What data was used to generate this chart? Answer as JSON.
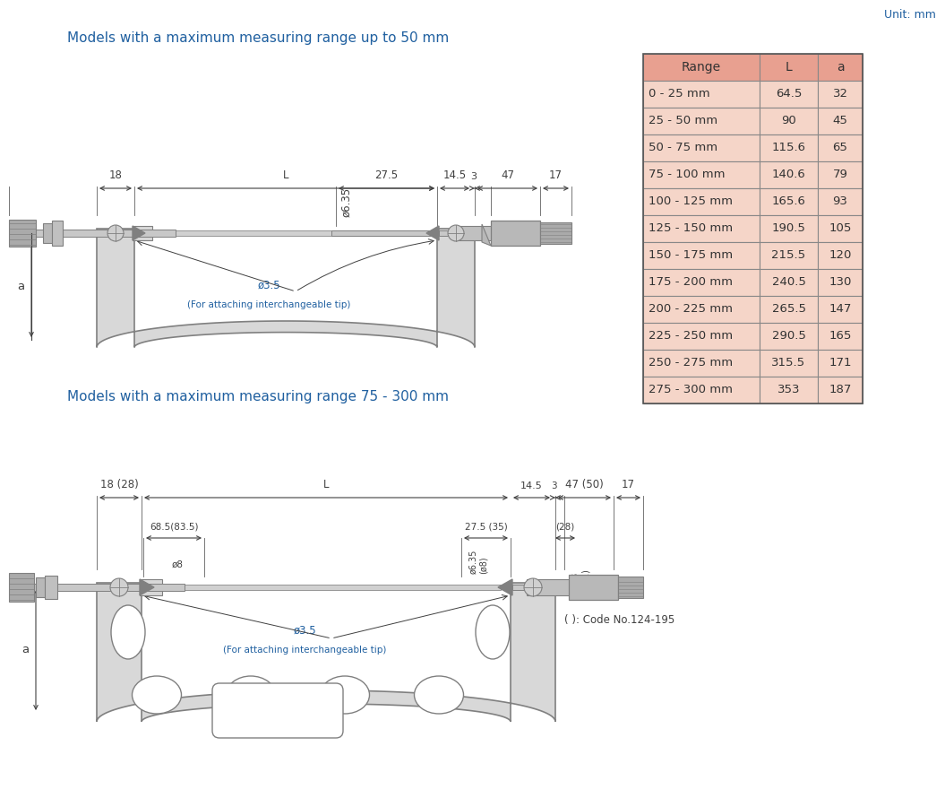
{
  "title_top": "Models with a maximum measuring range up to 50 mm",
  "title_bottom": "Models with a maximum measuring range 75 - 300 mm",
  "unit_text": "Unit: mm",
  "table_headers": [
    "Range",
    "L",
    "a"
  ],
  "table_data": [
    [
      "0 - 25 mm",
      "64.5",
      "32"
    ],
    [
      "25 - 50 mm",
      "90",
      "45"
    ],
    [
      "50 - 75 mm",
      "115.6",
      "65"
    ],
    [
      "75 - 100 mm",
      "140.6",
      "79"
    ],
    [
      "100 - 125 mm",
      "165.6",
      "93"
    ],
    [
      "125 - 150 mm",
      "190.5",
      "105"
    ],
    [
      "150 - 175 mm",
      "215.5",
      "120"
    ],
    [
      "175 - 200 mm",
      "240.5",
      "130"
    ],
    [
      "200 - 225 mm",
      "265.5",
      "147"
    ],
    [
      "225 - 250 mm",
      "290.5",
      "165"
    ],
    [
      "250 - 275 mm",
      "315.5",
      "171"
    ],
    [
      "275 - 300 mm",
      "353",
      "187"
    ]
  ],
  "header_bg": "#e8a090",
  "row_bg": "#f5d5c8",
  "text_color_blue": "#2060a0",
  "text_color_dark": "#333333",
  "text_color_orange": "#c05000",
  "bg_color": "#ffffff",
  "frame_color": "#888888",
  "dim_color": "#444444"
}
